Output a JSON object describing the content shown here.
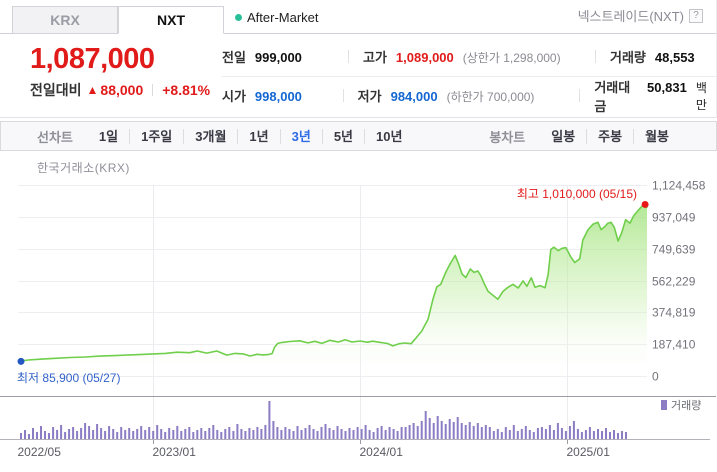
{
  "header": {
    "tabs": [
      {
        "label": "KRX",
        "active": false
      },
      {
        "label": "NXT",
        "active": true
      }
    ],
    "after_market_label": "After-Market",
    "market_name": "넥스트레이드(NXT)",
    "help_icon": "?"
  },
  "price": {
    "current": "1,087,000",
    "change_label": "전일대비",
    "change_arrow": "▲",
    "change_value": "88,000",
    "change_percent": "+8.81%"
  },
  "summary": {
    "rows": [
      {
        "cells": [
          {
            "label": "전일",
            "value": "999,000"
          },
          {
            "label": "고가",
            "value": "1,089,000",
            "extra": "(상한가 1,298,000)"
          },
          {
            "label": "거래량",
            "value": "48,553"
          }
        ]
      },
      {
        "cells": [
          {
            "label": "시가",
            "value": "998,000"
          },
          {
            "label": "저가",
            "value": "984,000",
            "extra": "(하한가 700,000)"
          },
          {
            "label": "거래대금",
            "value": "50,831",
            "suffix": "백만"
          }
        ]
      }
    ]
  },
  "toolbar": {
    "line_group_label": "선차트",
    "ranges": [
      "1일",
      "1주일",
      "3개월",
      "1년",
      "3년",
      "5년",
      "10년"
    ],
    "active_range": "3년",
    "candle_group_label": "봉차트",
    "candle_items": [
      "일봉",
      "주봉",
      "월봉"
    ]
  },
  "colors": {
    "up_red": "#e11a1a",
    "value_blue": "#1467d2",
    "annotation_blue": "#3263c8",
    "line_green": "#6fcf4b",
    "volume_purple": "#8b7cc4",
    "active_range_blue": "#2e6be6",
    "after_market_dot": "#2abf99"
  },
  "chart_data": {
    "type": "area",
    "title": "한국거래소(KRX)",
    "legend": "거래량",
    "high_annotation": {
      "text": "최고 1,010,000 (05/15)",
      "value": 1010000,
      "t": 0.997
    },
    "low_annotation": {
      "text": "최저 85,900 (05/27)",
      "value": 85900,
      "t": 0.0
    },
    "ylim": [
      0,
      1124458
    ],
    "y_ticks": [
      {
        "label": "1,124,458",
        "value": 1124458
      },
      {
        "label": "937,049",
        "value": 937049
      },
      {
        "label": "749,639",
        "value": 749639
      },
      {
        "label": "562,229",
        "value": 562229
      },
      {
        "label": "374,819",
        "value": 374819
      },
      {
        "label": "187,410",
        "value": 187410
      },
      {
        "label": "0",
        "value": 0
      }
    ],
    "x_ticks": [
      {
        "label": "2022/05",
        "t": 0.0,
        "grid": false
      },
      {
        "label": "2023/01",
        "t": 0.2146,
        "grid": true
      },
      {
        "label": "2024/01",
        "t": 0.5437,
        "grid": true
      },
      {
        "label": "2025/01",
        "t": 0.8728,
        "grid": true
      }
    ],
    "series": [
      [
        0.0,
        85900
      ],
      [
        0.016,
        94000
      ],
      [
        0.035,
        99000
      ],
      [
        0.059,
        104000
      ],
      [
        0.083,
        109000
      ],
      [
        0.107,
        112000
      ],
      [
        0.13,
        117000
      ],
      [
        0.154,
        120000
      ],
      [
        0.178,
        124000
      ],
      [
        0.202,
        128000
      ],
      [
        0.215,
        130000
      ],
      [
        0.234,
        133000
      ],
      [
        0.253,
        140000
      ],
      [
        0.273,
        137000
      ],
      [
        0.285,
        147000
      ],
      [
        0.3,
        135000
      ],
      [
        0.316,
        147000
      ],
      [
        0.332,
        123000
      ],
      [
        0.345,
        133000
      ],
      [
        0.358,
        130000
      ],
      [
        0.369,
        118000
      ],
      [
        0.38,
        128000
      ],
      [
        0.39,
        124000
      ],
      [
        0.399,
        127000
      ],
      [
        0.404,
        132000
      ],
      [
        0.408,
        170000
      ],
      [
        0.413,
        192000
      ],
      [
        0.42,
        198000
      ],
      [
        0.432,
        203000
      ],
      [
        0.448,
        207000
      ],
      [
        0.461,
        195000
      ],
      [
        0.472,
        204000
      ],
      [
        0.483,
        192000
      ],
      [
        0.496,
        210000
      ],
      [
        0.509,
        200000
      ],
      [
        0.52,
        213000
      ],
      [
        0.531,
        200000
      ],
      [
        0.544,
        206000
      ],
      [
        0.555,
        199000
      ],
      [
        0.564,
        205000
      ],
      [
        0.576,
        198000
      ],
      [
        0.587,
        192000
      ],
      [
        0.596,
        177000
      ],
      [
        0.606,
        190000
      ],
      [
        0.615,
        194000
      ],
      [
        0.625,
        190000
      ],
      [
        0.633,
        225000
      ],
      [
        0.642,
        265000
      ],
      [
        0.652,
        335000
      ],
      [
        0.66,
        455000
      ],
      [
        0.666,
        525000
      ],
      [
        0.672,
        540000
      ],
      [
        0.68,
        610000
      ],
      [
        0.687,
        660000
      ],
      [
        0.695,
        710000
      ],
      [
        0.701,
        655000
      ],
      [
        0.706,
        600000
      ],
      [
        0.712,
        580000
      ],
      [
        0.719,
        630000
      ],
      [
        0.725,
        610000
      ],
      [
        0.731,
        618000
      ],
      [
        0.736,
        590000
      ],
      [
        0.741,
        545000
      ],
      [
        0.747,
        500000
      ],
      [
        0.754,
        478000
      ],
      [
        0.763,
        452000
      ],
      [
        0.771,
        498000
      ],
      [
        0.779,
        522000
      ],
      [
        0.787,
        540000
      ],
      [
        0.795,
        518000
      ],
      [
        0.803,
        560000
      ],
      [
        0.809,
        528000
      ],
      [
        0.816,
        578000
      ],
      [
        0.822,
        522000
      ],
      [
        0.83,
        532000
      ],
      [
        0.838,
        520000
      ],
      [
        0.843,
        600000
      ],
      [
        0.847,
        745000
      ],
      [
        0.852,
        758000
      ],
      [
        0.859,
        738000
      ],
      [
        0.865,
        752000
      ],
      [
        0.871,
        756000
      ],
      [
        0.879,
        700000
      ],
      [
        0.885,
        668000
      ],
      [
        0.893,
        690000
      ],
      [
        0.898,
        800000
      ],
      [
        0.906,
        860000
      ],
      [
        0.914,
        893000
      ],
      [
        0.922,
        905000
      ],
      [
        0.927,
        862000
      ],
      [
        0.933,
        880000
      ],
      [
        0.938,
        900000
      ],
      [
        0.943,
        905000
      ],
      [
        0.948,
        875000
      ],
      [
        0.954,
        795000
      ],
      [
        0.96,
        845000
      ],
      [
        0.966,
        920000
      ],
      [
        0.973,
        900000
      ],
      [
        0.979,
        945000
      ],
      [
        0.986,
        975000
      ],
      [
        0.992,
        1000000
      ],
      [
        0.997,
        1010000
      ],
      [
        1.0,
        988000
      ]
    ],
    "volume_bars": [
      6,
      9,
      5,
      11,
      7,
      13,
      8,
      6,
      12,
      9,
      14,
      7,
      10,
      12,
      8,
      11,
      16,
      13,
      9,
      15,
      11,
      8,
      13,
      10,
      7,
      12,
      9,
      11,
      8,
      10,
      13,
      9,
      12,
      8,
      14,
      10,
      7,
      11,
      9,
      13,
      8,
      10,
      12,
      7,
      9,
      11,
      8,
      11,
      14,
      9,
      7,
      10,
      12,
      8,
      15,
      10,
      8,
      11,
      9,
      12,
      10,
      14,
      38,
      18,
      12,
      9,
      12,
      10,
      8,
      13,
      9,
      11,
      14,
      10,
      8,
      12,
      15,
      11,
      9,
      13,
      10,
      8,
      11,
      9,
      12,
      10,
      14,
      9,
      7,
      11,
      13,
      9,
      12,
      10,
      8,
      12,
      12,
      14,
      16,
      13,
      18,
      28,
      21,
      16,
      23,
      18,
      15,
      20,
      17,
      22,
      16,
      14,
      17,
      13,
      16,
      12,
      14,
      12,
      8,
      10,
      7,
      12,
      9,
      14,
      8,
      10,
      13,
      9,
      7,
      11,
      12,
      10,
      14,
      9,
      16,
      11,
      8,
      13,
      18,
      10,
      7,
      9,
      12,
      8,
      10,
      8,
      11,
      7,
      9,
      6,
      8,
      7
    ]
  }
}
